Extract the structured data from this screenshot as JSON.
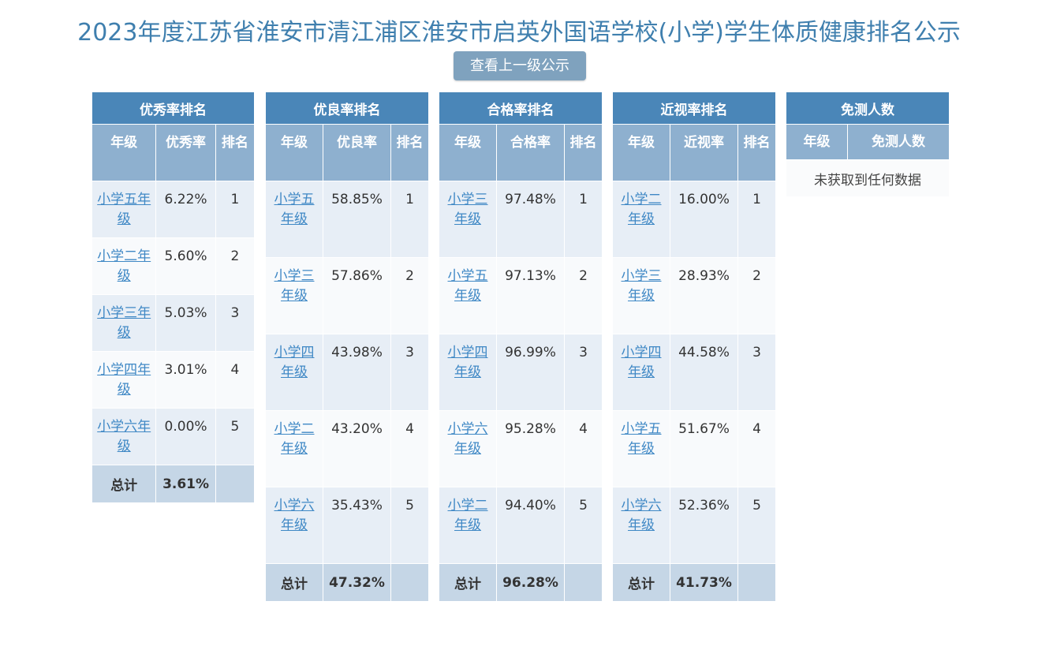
{
  "page_title": "2023年度江苏省淮安市清江浦区淮安市启英外国语学校(小学)学生体质健康排名公示",
  "up_button": "查看上一级公示",
  "tables": {
    "excellent": {
      "caption": "优秀率排名",
      "headers": [
        "年级",
        "优秀率",
        "排名"
      ],
      "rows": [
        {
          "grade": "小学五年级",
          "rate": "6.22%",
          "rank": "1"
        },
        {
          "grade": "小学二年级",
          "rate": "5.60%",
          "rank": "2"
        },
        {
          "grade": "小学三年级",
          "rate": "5.03%",
          "rank": "3"
        },
        {
          "grade": "小学四年级",
          "rate": "3.01%",
          "rank": "4"
        },
        {
          "grade": "小学六年级",
          "rate": "0.00%",
          "rank": "5"
        }
      ],
      "total_label": "总计",
      "total_value": "3.61%"
    },
    "good": {
      "caption": "优良率排名",
      "headers": [
        "年级",
        "优良率",
        "排名"
      ],
      "rows": [
        {
          "grade": "小学五年级",
          "rate": "58.85%",
          "rank": "1"
        },
        {
          "grade": "小学三年级",
          "rate": "57.86%",
          "rank": "2"
        },
        {
          "grade": "小学四年级",
          "rate": "43.98%",
          "rank": "3"
        },
        {
          "grade": "小学二年级",
          "rate": "43.20%",
          "rank": "4"
        },
        {
          "grade": "小学六年级",
          "rate": "35.43%",
          "rank": "5"
        }
      ],
      "total_label": "总计",
      "total_value": "47.32%"
    },
    "pass": {
      "caption": "合格率排名",
      "headers": [
        "年级",
        "合格率",
        "排名"
      ],
      "rows": [
        {
          "grade": "小学三年级",
          "rate": "97.48%",
          "rank": "1"
        },
        {
          "grade": "小学五年级",
          "rate": "97.13%",
          "rank": "2"
        },
        {
          "grade": "小学四年级",
          "rate": "96.99%",
          "rank": "3"
        },
        {
          "grade": "小学六年级",
          "rate": "95.28%",
          "rank": "4"
        },
        {
          "grade": "小学二年级",
          "rate": "94.40%",
          "rank": "5"
        }
      ],
      "total_label": "总计",
      "total_value": "96.28%"
    },
    "myopia": {
      "caption": "近视率排名",
      "headers": [
        "年级",
        "近视率",
        "排名"
      ],
      "rows": [
        {
          "grade": "小学二年级",
          "rate": "16.00%",
          "rank": "1"
        },
        {
          "grade": "小学三年级",
          "rate": "28.93%",
          "rank": "2"
        },
        {
          "grade": "小学四年级",
          "rate": "44.58%",
          "rank": "3"
        },
        {
          "grade": "小学五年级",
          "rate": "51.67%",
          "rank": "4"
        },
        {
          "grade": "小学六年级",
          "rate": "52.36%",
          "rank": "5"
        }
      ],
      "total_label": "总计",
      "total_value": "41.73%"
    },
    "exempt": {
      "caption": "免测人数",
      "headers": [
        "年级",
        "免测人数"
      ],
      "empty_text": "未获取到任何数据"
    }
  }
}
